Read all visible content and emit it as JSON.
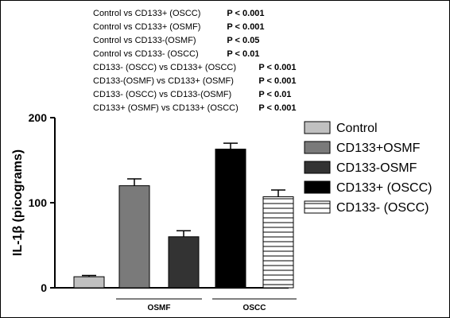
{
  "comparisons": [
    {
      "label": "Control vs CD133+ (OSCC)",
      "p": "P < 0.001"
    },
    {
      "label": "Control vs CD133+ (OSMF)",
      "p": "P < 0.001"
    },
    {
      "label": "Control vs CD133-(OSMF)",
      "p": "P < 0.05"
    },
    {
      "label": "Control vs CD133- (OSCC)",
      "p": "P < 0.01"
    },
    {
      "label": "CD133- (OSCC) vs CD133+ (OSCC)",
      "p": "P < 0.001"
    },
    {
      "label": "CD133-(OSMF) vs CD133+ (OSMF)",
      "p": "P < 0.001"
    },
    {
      "label": "CD133- (OSCC) vs CD133-(OSMF)",
      "p": "P < 0.01"
    },
    {
      "label": "CD133+ (OSMF) vs CD133+ (OSCC)",
      "p": "P < 0.001"
    }
  ],
  "chart_data": {
    "type": "bar",
    "ylabel": "IL-1β (picograms)",
    "xlabel": "",
    "ylim": [
      0,
      200
    ],
    "yticks": [
      0,
      100,
      200
    ],
    "groups": [
      "OSMF",
      "OSCC"
    ],
    "series": [
      {
        "name": "Control",
        "group": null,
        "value": 13,
        "error": 1.5,
        "fill": "#c0c0c0",
        "pattern": "solid"
      },
      {
        "name": "CD133+OSMF",
        "group": "OSMF",
        "value": 120,
        "error": 8,
        "fill": "#7a7a7a",
        "pattern": "solid"
      },
      {
        "name": "CD133-OSMF",
        "group": "OSMF",
        "value": 60,
        "error": 7,
        "fill": "#333333",
        "pattern": "solid"
      },
      {
        "name": "CD133+ (OSCC)",
        "group": "OSCC",
        "value": 163,
        "error": 7,
        "fill": "#000000",
        "pattern": "solid"
      },
      {
        "name": "CD133- (OSCC)",
        "group": "OSCC",
        "value": 107,
        "error": 8,
        "fill": "#ffffff",
        "pattern": "horizontal-lines"
      }
    ],
    "legend_position": "right",
    "grid": false
  }
}
